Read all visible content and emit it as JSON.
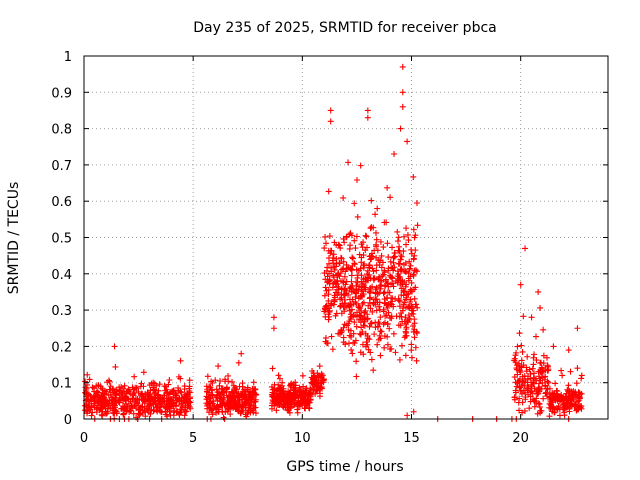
{
  "chart_data": {
    "type": "scatter",
    "title": "Day 235 of 2025, SRMTID for receiver pbca",
    "xlabel": "GPS time / hours",
    "ylabel": "SRMTID / TECUs",
    "xlim": [
      0,
      24
    ],
    "ylim": [
      0,
      1
    ],
    "xticks": [
      0,
      5,
      10,
      15,
      20
    ],
    "yticks": [
      0,
      0.1,
      0.2,
      0.3,
      0.4,
      0.5,
      0.6,
      0.7,
      0.8,
      0.9,
      1
    ],
    "ytick_labels": [
      "0",
      "0.1",
      "0.2",
      "0.3",
      "0.4",
      "0.5",
      "0.6",
      "0.7",
      "0.8",
      "0.9",
      "1"
    ],
    "grid": true,
    "marker": "+",
    "color": "#ff0000",
    "series": [
      {
        "name": "SRMTID",
        "clusters": [
          {
            "x_range": [
              0.0,
              4.9
            ],
            "base": 0.05,
            "spread": 0.07,
            "count": 520
          },
          {
            "x_range": [
              5.6,
              7.9
            ],
            "base": 0.05,
            "spread": 0.07,
            "count": 280
          },
          {
            "x_range": [
              8.6,
              10.4
            ],
            "base": 0.06,
            "spread": 0.05,
            "count": 260
          },
          {
            "x_range": [
              10.4,
              11.0
            ],
            "base": 0.1,
            "spread": 0.05,
            "count": 60
          },
          {
            "x_range": [
              11.0,
              15.3
            ],
            "base": 0.35,
            "spread": 0.25,
            "count": 650
          }
        ],
        "points": [
          [
            1.4,
            0.2
          ],
          [
            7.2,
            0.18
          ],
          [
            8.7,
            0.28
          ],
          [
            8.7,
            0.25
          ],
          [
            11.3,
            0.85
          ],
          [
            11.3,
            0.82
          ],
          [
            13.0,
            0.85
          ],
          [
            13.0,
            0.83
          ],
          [
            14.6,
            0.97
          ],
          [
            14.6,
            0.9
          ],
          [
            14.6,
            0.86
          ],
          [
            14.2,
            0.73
          ],
          [
            14.5,
            0.8
          ],
          [
            15.1,
            0.44
          ],
          [
            15.2,
            0.41
          ],
          [
            15.1,
            0.02
          ],
          [
            14.8,
            0.01
          ],
          [
            16.2,
            0.0
          ],
          [
            17.8,
            0.0
          ],
          [
            18.9,
            0.0
          ],
          [
            19.6,
            0.0
          ],
          [
            19.8,
            0.0
          ],
          [
            20.2,
            0.47
          ],
          [
            20.0,
            0.37
          ],
          [
            20.8,
            0.35
          ],
          [
            20.5,
            0.28
          ],
          [
            21.5,
            0.2
          ],
          [
            22.6,
            0.25
          ],
          [
            22.6,
            0.14
          ],
          [
            22.8,
            0.12
          ],
          [
            22.2,
            0.19
          ],
          [
            21.9,
            0.12
          ]
        ],
        "tail_clusters": [
          {
            "x_range": [
              19.7,
              21.3
            ],
            "base": 0.1,
            "spread": 0.12,
            "count": 160
          },
          {
            "x_range": [
              21.3,
              22.8
            ],
            "base": 0.05,
            "spread": 0.06,
            "count": 150
          }
        ]
      }
    ]
  }
}
